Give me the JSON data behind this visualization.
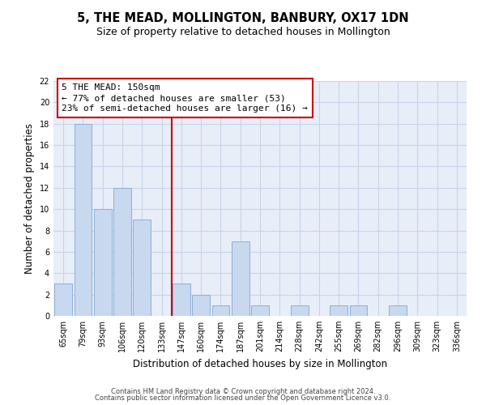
{
  "title": "5, THE MEAD, MOLLINGTON, BANBURY, OX17 1DN",
  "subtitle": "Size of property relative to detached houses in Mollington",
  "xlabel": "Distribution of detached houses by size in Mollington",
  "ylabel": "Number of detached properties",
  "bar_labels": [
    "65sqm",
    "79sqm",
    "93sqm",
    "106sqm",
    "120sqm",
    "133sqm",
    "147sqm",
    "160sqm",
    "174sqm",
    "187sqm",
    "201sqm",
    "214sqm",
    "228sqm",
    "242sqm",
    "255sqm",
    "269sqm",
    "282sqm",
    "296sqm",
    "309sqm",
    "323sqm",
    "336sqm"
  ],
  "bar_values": [
    3,
    18,
    10,
    12,
    9,
    0,
    3,
    2,
    1,
    7,
    1,
    0,
    1,
    0,
    1,
    1,
    0,
    1,
    0,
    0,
    0
  ],
  "bar_color": "#c8d8ee",
  "bar_edge_color": "#8ab0d8",
  "vline_color": "#cc0000",
  "annotation_title": "5 THE MEAD: 150sqm",
  "annotation_line1": "← 77% of detached houses are smaller (53)",
  "annotation_line2": "23% of semi-detached houses are larger (16) →",
  "annotation_box_color": "#ffffff",
  "annotation_box_edge": "#cc0000",
  "ylim": [
    0,
    22
  ],
  "yticks": [
    0,
    2,
    4,
    6,
    8,
    10,
    12,
    14,
    16,
    18,
    20,
    22
  ],
  "grid_color": "#c8d4e8",
  "bg_color": "#e8eef8",
  "footer1": "Contains HM Land Registry data © Crown copyright and database right 2024.",
  "footer2": "Contains public sector information licensed under the Open Government Licence v3.0.",
  "title_fontsize": 10.5,
  "subtitle_fontsize": 9,
  "xlabel_fontsize": 8.5,
  "ylabel_fontsize": 8.5,
  "tick_fontsize": 7,
  "footer_fontsize": 6,
  "annot_fontsize": 8
}
